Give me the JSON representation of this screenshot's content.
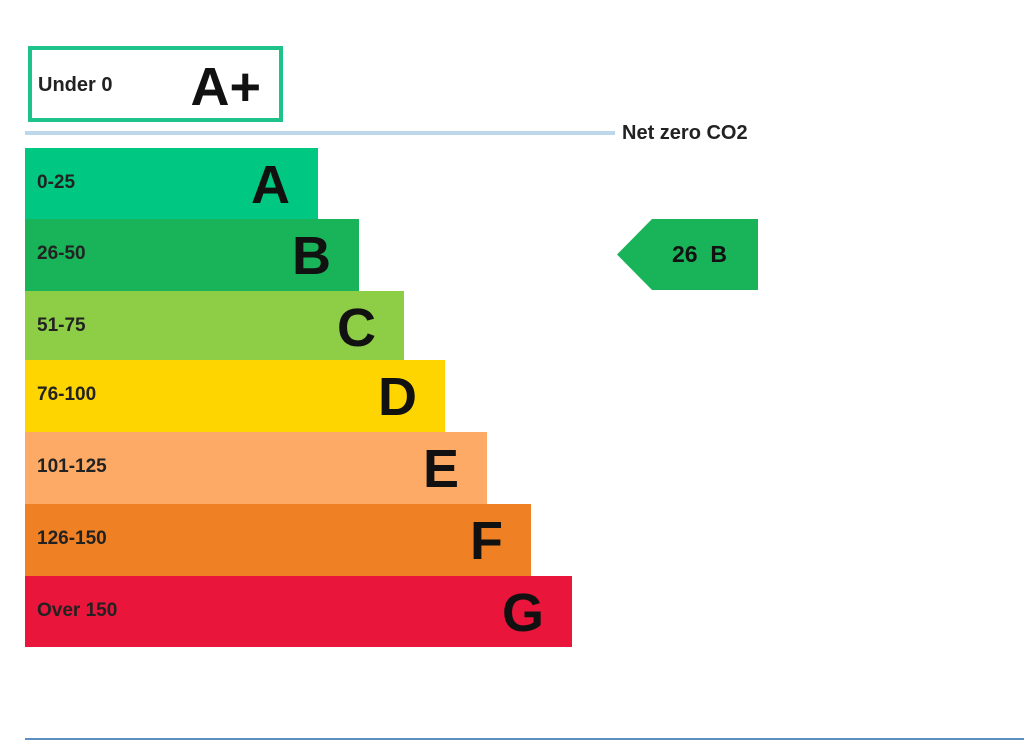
{
  "chart_data": {
    "type": "bar",
    "top_band": {
      "range": "Under 0",
      "letter": "A+",
      "color": "#1fc38a"
    },
    "net_zero_label": "Net zero CO2",
    "bands": [
      {
        "range": "0-25",
        "letter": "A",
        "color": "#00c781"
      },
      {
        "range": "26-50",
        "letter": "B",
        "color": "#19b459"
      },
      {
        "range": "51-75",
        "letter": "C",
        "color": "#8dce46"
      },
      {
        "range": "76-100",
        "letter": "D",
        "color": "#ffd500"
      },
      {
        "range": "101-125",
        "letter": "E",
        "color": "#fcaa65"
      },
      {
        "range": "126-150",
        "letter": "F",
        "color": "#ef8023"
      },
      {
        "range": "Over 150",
        "letter": "G",
        "color": "#e9153b"
      }
    ],
    "current": {
      "value": "26",
      "letter": "B",
      "label": "26  B",
      "color": "#19b459"
    }
  }
}
